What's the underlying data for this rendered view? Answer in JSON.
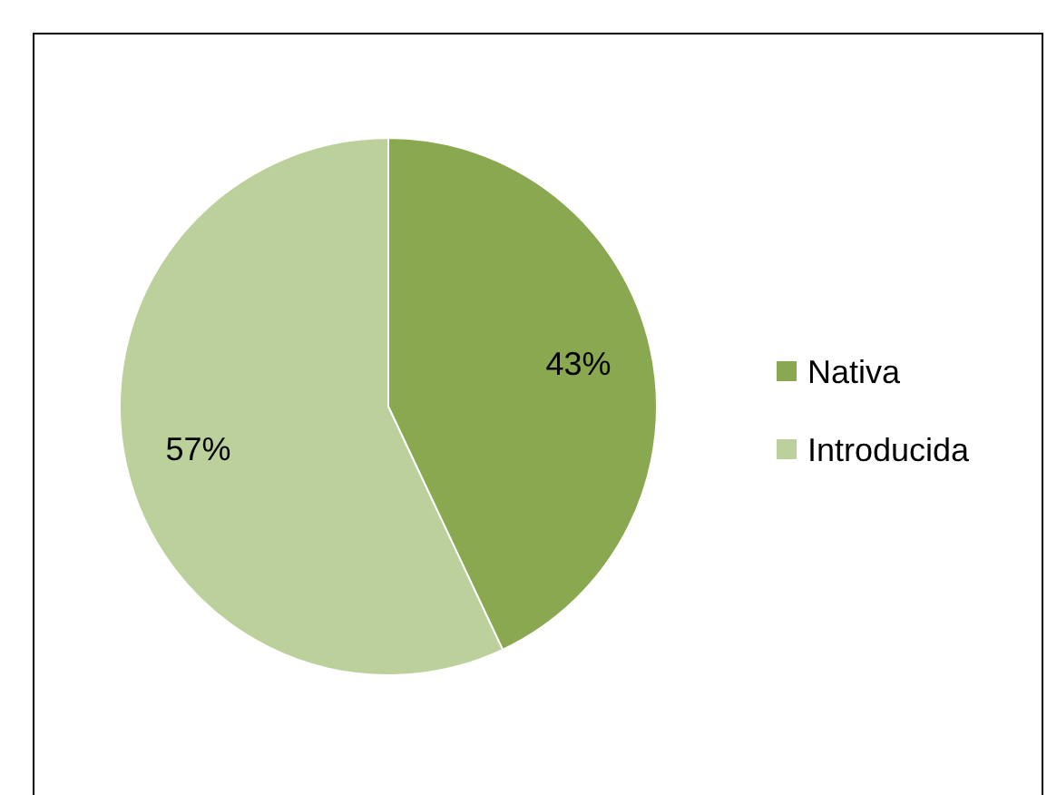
{
  "chart_data": {
    "type": "pie",
    "categories": [
      "Nativa",
      "Introducida"
    ],
    "values": [
      43,
      57
    ],
    "colors": [
      "#8aa84f",
      "#bbd09a"
    ],
    "data_labels": true,
    "value_labels": [
      "43%",
      "57%"
    ],
    "legend": "right"
  }
}
